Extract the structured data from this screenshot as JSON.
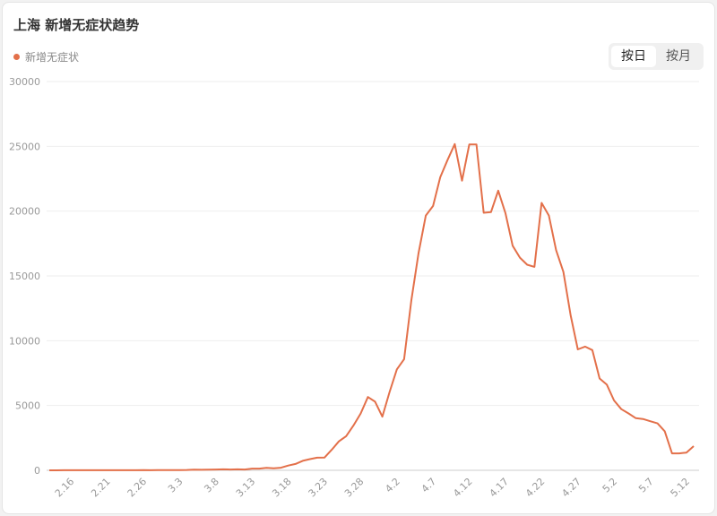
{
  "header": {
    "title": "上海 新增无症状趋势",
    "buttons": [
      "按日",
      "按月"
    ]
  },
  "chart_data": {
    "type": "line",
    "categories": [
      null,
      null,
      null,
      "2.16",
      null,
      null,
      null,
      null,
      "2.21",
      null,
      null,
      null,
      null,
      "2.26",
      null,
      null,
      null,
      null,
      "3.3",
      null,
      null,
      null,
      null,
      "3.8",
      null,
      null,
      null,
      null,
      "3.13",
      null,
      null,
      null,
      null,
      "3.18",
      null,
      null,
      null,
      null,
      "3.23",
      null,
      null,
      null,
      null,
      "3.28",
      null,
      null,
      null,
      null,
      "4.2",
      null,
      null,
      null,
      null,
      "4.7",
      null,
      null,
      null,
      null,
      "4.12",
      null,
      null,
      null,
      null,
      "4.17",
      null,
      null,
      null,
      null,
      "4.22",
      null,
      null,
      null,
      null,
      "4.27",
      null,
      null,
      null,
      null,
      "5.2",
      null,
      null,
      null,
      null,
      "5.7",
      null,
      null,
      null,
      null,
      "5.12",
      null
    ],
    "series": [
      {
        "name": "新增无症状",
        "color": "#e3704a",
        "values": [
          2,
          3,
          5,
          4,
          6,
          7,
          5,
          8,
          6,
          7,
          8,
          10,
          9,
          12,
          10,
          13,
          14,
          18,
          21,
          30,
          45,
          40,
          51,
          62,
          76,
          64,
          78,
          64,
          128,
          130,
          197,
          150,
          203,
          366,
          492,
          734,
          865,
          977,
          979,
          1580,
          2231,
          2631,
          3450,
          4381,
          5656,
          5298,
          4144,
          6051,
          7788,
          8581,
          13086,
          16766,
          19660,
          20398,
          22609,
          23937,
          25173,
          22348,
          25141,
          25146,
          19872,
          19923,
          21582,
          19831,
          17332,
          16407,
          15861,
          15698,
          20634,
          19657,
          16983,
          15319,
          11956,
          9330,
          9545,
          9277,
          7084,
          6606,
          5395,
          4722,
          4390,
          4024,
          3961,
          3786,
          3625,
          3014,
          1305,
          1305,
          1369,
          1869
        ]
      }
    ],
    "ylim": [
      0,
      30000
    ],
    "yticks": [
      0,
      5000,
      10000,
      15000,
      20000,
      25000,
      30000
    ],
    "grid": true
  }
}
